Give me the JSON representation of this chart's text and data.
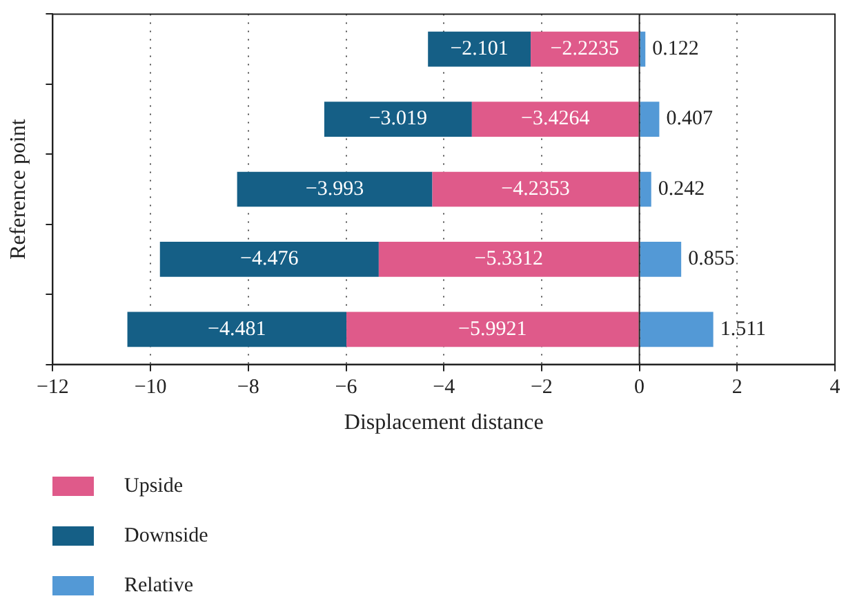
{
  "chart_data": {
    "type": "bar",
    "orientation": "horizontal",
    "stacked": true,
    "xlabel": "Displacement distance",
    "ylabel": "Reference point",
    "categories": [
      null,
      null,
      null,
      null,
      null
    ],
    "series": [
      {
        "name": "Upside",
        "color": "#df5a8a",
        "values": [
          -2.2235,
          -3.4264,
          -4.2353,
          -5.3312,
          -5.9921
        ]
      },
      {
        "name": "Downside",
        "color": "#155f86",
        "values": [
          -2.101,
          -3.019,
          -3.993,
          -4.476,
          -4.481
        ]
      },
      {
        "name": "Relative",
        "color": "#5399d6",
        "values": [
          0.122,
          0.407,
          0.242,
          0.855,
          1.511
        ]
      }
    ],
    "xlim": [
      -12,
      4
    ],
    "xticks": [
      -12,
      -10,
      -8,
      -6,
      -4,
      -2,
      0,
      2,
      4
    ],
    "grid": "x",
    "line_style": "dotted",
    "legend": "bottom left",
    "data_labels": true
  }
}
